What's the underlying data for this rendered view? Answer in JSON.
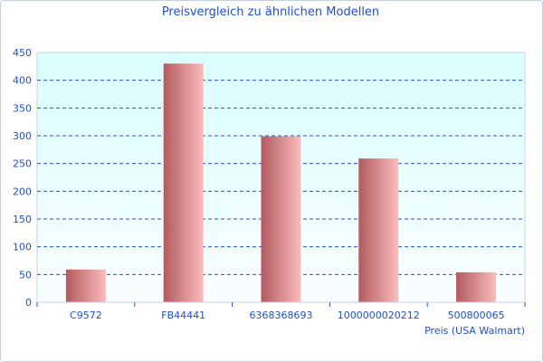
{
  "chart_data": {
    "type": "bar",
    "title": "Preisvergleich zu ähnlichen Modellen",
    "xlabel": "Preis (USA Walmart)",
    "ylabel": "",
    "categories": [
      "C9572",
      "FB44441",
      "6368368693",
      "1000000020212",
      "500800065"
    ],
    "values": [
      59,
      430,
      299,
      259,
      54
    ],
    "ylim": [
      0,
      450
    ],
    "yticks": [
      0,
      50,
      100,
      150,
      200,
      250,
      300,
      350,
      400,
      450
    ],
    "grid": true,
    "legend": "none",
    "colors": {
      "bar_dark": "#b35a5e",
      "bar_light": "#fbbcbc",
      "grid": "#2a52c8",
      "plot_bg_top": "#d9feff",
      "plot_bg_bottom": "#fafeff",
      "text": "#1f4fd0"
    }
  }
}
